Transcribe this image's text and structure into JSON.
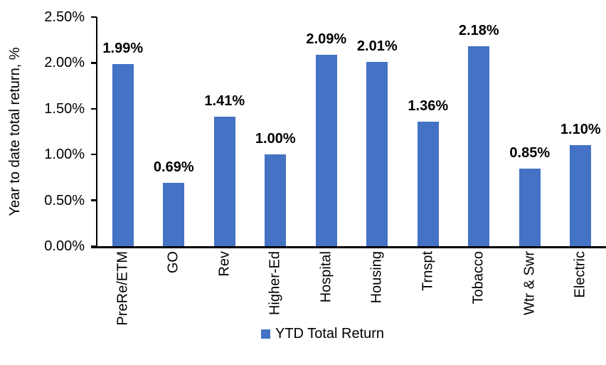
{
  "chart_data": {
    "type": "bar",
    "title": "",
    "xlabel": "",
    "ylabel": "Year to date total return, %",
    "categories": [
      "PreRe/ETM",
      "GO",
      "Rev",
      "Higher-Ed",
      "Hospital",
      "Housing",
      "Trnspt",
      "Tobacco",
      "Wtr & Swr",
      "Electric"
    ],
    "values": [
      1.99,
      0.69,
      1.41,
      1.0,
      2.09,
      2.01,
      1.36,
      2.18,
      0.85,
      1.1
    ],
    "value_labels": [
      "1.99%",
      "0.69%",
      "1.41%",
      "1.00%",
      "2.09%",
      "2.01%",
      "1.36%",
      "2.18%",
      "0.85%",
      "1.10%"
    ],
    "ylim": [
      0,
      2.5
    ],
    "ytick_labels": [
      "0.00%",
      "0.50%",
      "1.00%",
      "1.50%",
      "2.00%",
      "2.50%"
    ],
    "grid": false,
    "bar_color": "#4472C4",
    "axis_color": "#000000",
    "legend": {
      "position": "bottom",
      "entries": [
        {
          "label": "YTD Total Return",
          "color": "#4472C4"
        }
      ]
    }
  }
}
